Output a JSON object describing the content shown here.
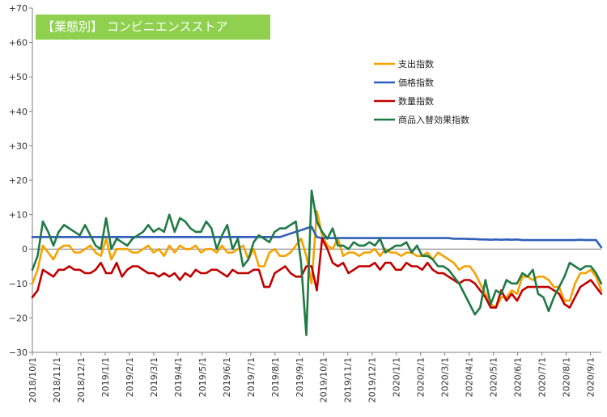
{
  "chart_data": {
    "type": "line",
    "title": "【業態別】 コンビニエンスストア",
    "ylim": [
      -30,
      70
    ],
    "yticks": [
      -30,
      -20,
      -10,
      0,
      10,
      20,
      30,
      40,
      50,
      60,
      70
    ],
    "ytick_labels": [
      "−30",
      "−20",
      "−10",
      "0",
      "+10",
      "+20",
      "+30",
      "+40",
      "+50",
      "+60",
      "+70"
    ],
    "xtick_labels": [
      "2018/10/1",
      "2018/11/1",
      "2018/12/1",
      "2019/1/1",
      "2019/2/1",
      "2019/3/1",
      "2019/4/1",
      "2019/5/1",
      "2019/6/1",
      "2019/7/1",
      "2019/8/1",
      "2019/9/1",
      "2019/10/1",
      "2019/11/1",
      "2019/12/1",
      "2020/1/1",
      "2020/2/1",
      "2020/3/1",
      "2020/4/1",
      "2020/5/1",
      "2020/6/1",
      "2020/7/1",
      "2020/8/1",
      "2020/9/1"
    ],
    "legend_position": "upper-right",
    "grid": false,
    "series": [
      {
        "name": "支出指数",
        "color": "#f5a100",
        "values": [
          -10,
          -6,
          1,
          -1,
          -3,
          0,
          1,
          1,
          -1,
          -1,
          0,
          1,
          -1,
          -2,
          3,
          -3,
          0,
          0,
          0,
          -1,
          -1,
          0,
          1,
          -1,
          0,
          -2,
          1,
          -1,
          1,
          0,
          0,
          1,
          -1,
          0,
          0,
          -1,
          1,
          -1,
          -1,
          0,
          1,
          -3,
          0,
          -5,
          -5,
          -1,
          0,
          -2,
          -2,
          -1,
          1,
          3,
          -2,
          -10,
          11,
          4,
          1,
          0,
          3,
          -2,
          -1,
          -1,
          -2,
          -1,
          -1,
          0,
          -2,
          0,
          -1,
          -1,
          -2,
          -1,
          -1,
          -2,
          -2,
          -1,
          -3,
          -1,
          -2,
          -3,
          -4,
          -6,
          -5,
          -5,
          -7,
          -10,
          -13,
          -16,
          -17,
          -14,
          -14,
          -12,
          -13,
          -8,
          -8,
          -9,
          -8,
          -8,
          -9,
          -11,
          -11,
          -15,
          -15,
          -10,
          -7,
          -7,
          -6,
          -8,
          -12
        ]
      },
      {
        "name": "価格指数",
        "color": "#2f5fba",
        "values": [
          3.5,
          3.5,
          3.5,
          3.5,
          3.5,
          3.5,
          3.5,
          3.5,
          3.5,
          3.5,
          3.5,
          3.5,
          3.5,
          3.5,
          3.5,
          3.5,
          3.5,
          3.5,
          3.5,
          3.5,
          3.5,
          3.5,
          3.5,
          3.5,
          3.5,
          3.5,
          3.5,
          3.5,
          3.5,
          3.5,
          3.5,
          3.5,
          3.5,
          3.5,
          3.5,
          3.5,
          3.5,
          3.5,
          3.5,
          3.5,
          3.5,
          3.5,
          3.5,
          3.5,
          3.5,
          3.5,
          3.5,
          3.5,
          4,
          4.5,
          5,
          5.5,
          6,
          6.5,
          3.5,
          3.2,
          3.2,
          3.2,
          3.2,
          3.2,
          3.2,
          3.2,
          3.2,
          3.2,
          3.2,
          3.2,
          3.2,
          3.2,
          3.2,
          3.2,
          3.2,
          3.2,
          3.2,
          3.2,
          3.2,
          3.2,
          3.2,
          3.2,
          3.2,
          3.2,
          3.0,
          3.0,
          3.0,
          2.9,
          2.9,
          2.8,
          2.8,
          2.7,
          2.8,
          2.7,
          2.8,
          2.7,
          2.8,
          2.6,
          2.6,
          2.6,
          2.6,
          2.6,
          2.6,
          2.6,
          2.6,
          2.6,
          2.6,
          2.6,
          2.7,
          2.6,
          2.6,
          2.6,
          0.5
        ]
      },
      {
        "name": "数量指数",
        "color": "#c00000",
        "values": [
          -14,
          -12,
          -6,
          -7,
          -8,
          -6,
          -6,
          -5,
          -6,
          -6,
          -7,
          -7,
          -6,
          -4,
          -7,
          -7,
          -4,
          -8,
          -6,
          -5,
          -5,
          -6,
          -7,
          -7,
          -8,
          -7,
          -8,
          -7,
          -9,
          -7,
          -8,
          -6,
          -7,
          -7,
          -6,
          -6,
          -7,
          -8,
          -6,
          -7,
          -7,
          -7,
          -6,
          -6,
          -11,
          -11,
          -7,
          -6,
          -5,
          -7,
          -8,
          -8,
          -5,
          -5,
          -12,
          3,
          0,
          -4,
          -5,
          -4,
          -7,
          -6,
          -5,
          -5,
          -5,
          -4,
          -6,
          -4,
          -4,
          -6,
          -6,
          -4,
          -5,
          -5,
          -6,
          -4,
          -6,
          -7,
          -7,
          -8,
          -9,
          -10,
          -9,
          -9,
          -10,
          -12,
          -14,
          -17,
          -17,
          -12,
          -15,
          -13,
          -15,
          -12,
          -11,
          -11,
          -11,
          -11,
          -11,
          -12,
          -13,
          -16,
          -17,
          -14,
          -11,
          -10,
          -9,
          -11,
          -13
        ]
      },
      {
        "name": "商品入替効果指数",
        "color": "#217a46",
        "values": [
          -6,
          -2,
          8,
          5,
          1,
          5,
          7,
          6,
          5,
          4,
          7,
          4,
          1,
          0,
          9,
          0,
          3,
          2,
          1,
          3,
          4,
          5,
          7,
          5,
          6,
          5,
          10,
          5,
          9,
          8,
          6,
          5,
          5,
          8,
          6,
          0,
          4,
          7,
          0,
          3,
          -5,
          -3,
          2,
          4,
          3,
          2,
          5,
          6,
          6,
          7,
          8,
          -4,
          -25,
          17,
          8,
          5,
          3,
          6,
          1,
          1,
          0,
          2,
          1,
          1,
          2,
          1,
          3,
          -1,
          0,
          1,
          1,
          2,
          -1,
          1,
          -2,
          -2,
          -3,
          -5,
          -5,
          -6,
          -8,
          -10,
          -13,
          -16,
          -19,
          -17,
          -9,
          -16,
          -12,
          -13,
          -9,
          -10,
          -10,
          -7,
          -8,
          -6,
          -13,
          -14,
          -18,
          -14,
          -11,
          -8,
          -4,
          -5,
          -6,
          -5,
          -5,
          -7,
          -10
        ]
      }
    ]
  }
}
